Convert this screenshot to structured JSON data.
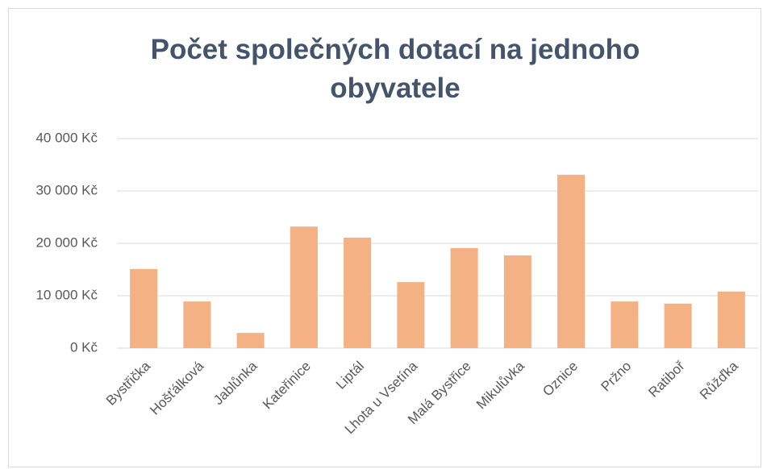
{
  "chart_data": {
    "type": "bar",
    "title": "Počet společných dotací na jednoho obyvatele",
    "categories": [
      "Bystřička",
      "Hošťálková",
      "Jablůnka",
      "Kateřinice",
      "Liptál",
      "Lhota u Vsetína",
      "Malá Bystřice",
      "Mikulůvka",
      "Oznice",
      "Pržno",
      "Ratiboř",
      "Růžďka"
    ],
    "values": [
      15100,
      8900,
      2900,
      23200,
      21100,
      12600,
      19100,
      17700,
      33100,
      8900,
      8500,
      10800
    ],
    "color": "#f4b183",
    "ylim": [
      0,
      40000
    ],
    "yticks": [
      {
        "value": 0,
        "label": "0 Kč"
      },
      {
        "value": 10000,
        "label": "10 000 Kč"
      },
      {
        "value": 20000,
        "label": "20 000 Kč"
      },
      {
        "value": 30000,
        "label": "30 000 Kč"
      },
      {
        "value": 40000,
        "label": "40 000 Kč"
      }
    ],
    "grid": true
  }
}
